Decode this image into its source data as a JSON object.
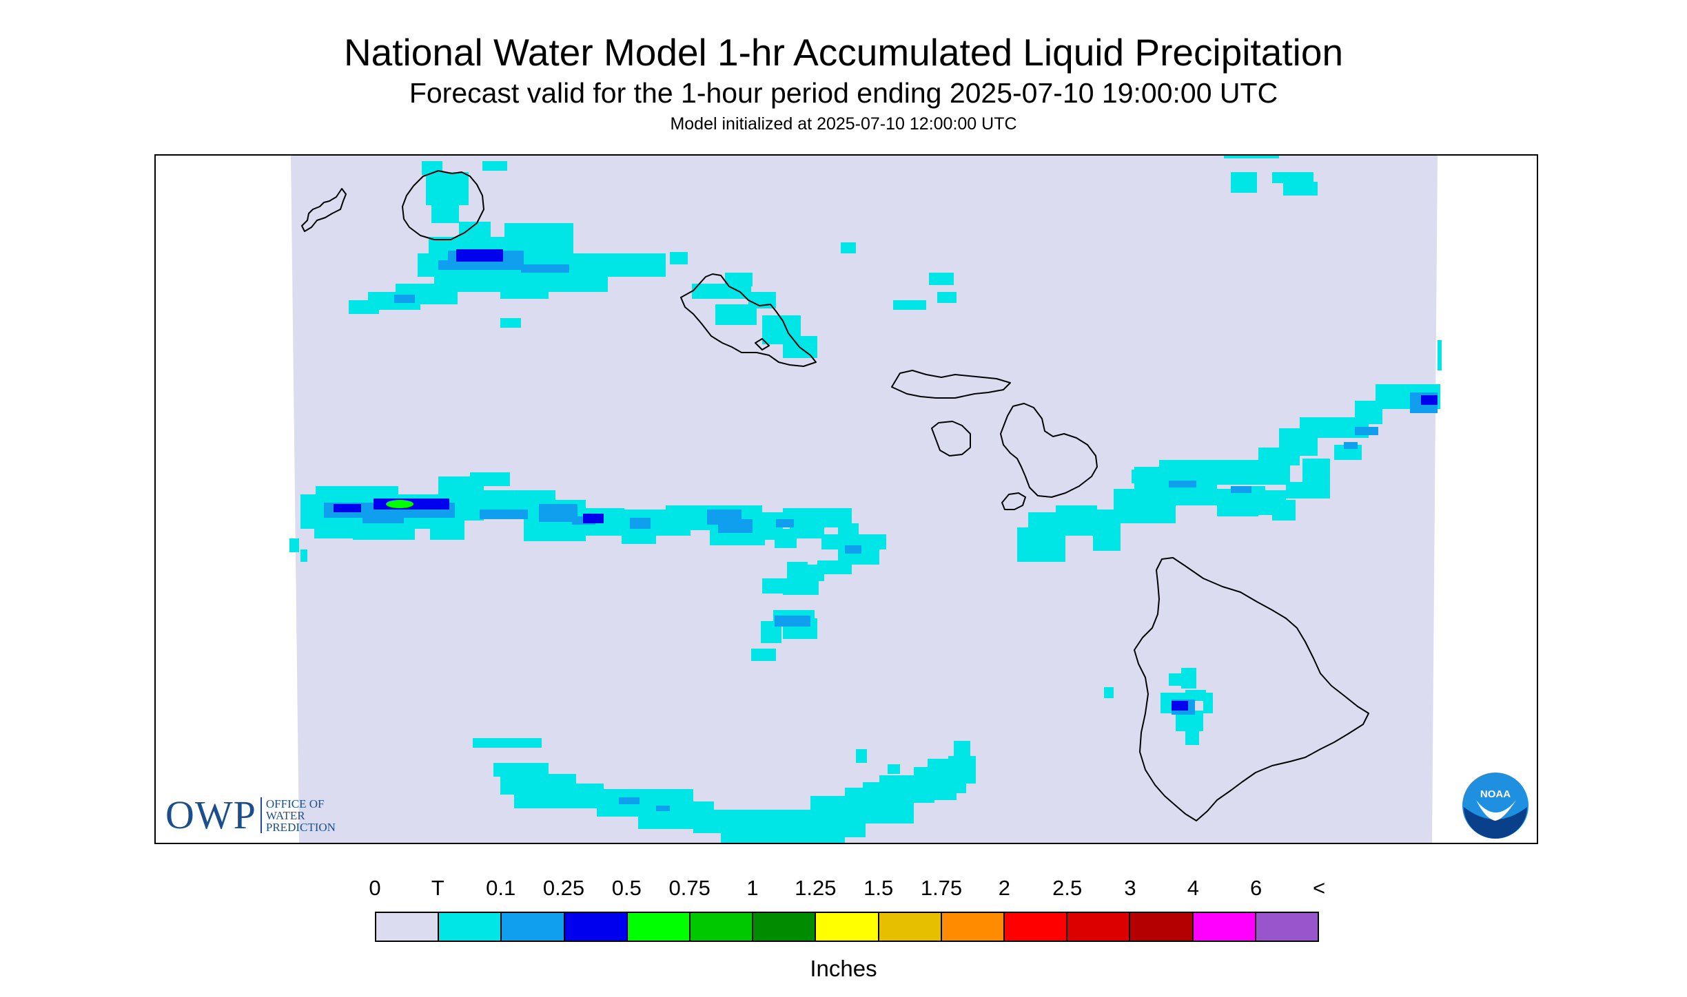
{
  "title": "National Water Model 1-hr Accumulated Liquid Precipitation",
  "subtitle": "Forecast valid for the 1-hour period ending 2025-07-10 19:00:00 UTC",
  "model_init": "Model initialized at 2025-07-10 12:00:00 UTC",
  "logos": {
    "owp_letters": "OWP",
    "owp_line1": "OFFICE OF",
    "owp_line2": "WATER",
    "owp_line3": "PREDICTION",
    "noaa": "NOAA"
  },
  "legend": {
    "units": "Inches",
    "labels": [
      "0",
      "T",
      "0.1",
      "0.25",
      "0.5",
      "0.75",
      "1",
      "1.25",
      "1.5",
      "1.75",
      "2",
      "2.5",
      "3",
      "4",
      "6",
      "<"
    ],
    "colors": [
      "#dcdcf0",
      "#00e5e5",
      "#0f9fee",
      "#0000ee",
      "#00ff00",
      "#00c800",
      "#008c00",
      "#ffff00",
      "#e6c000",
      "#ff8c00",
      "#ff0000",
      "#dc0000",
      "#b40000",
      "#ff00ff",
      "#9955cc"
    ]
  },
  "map": {
    "domain_color": "#dcdcf0",
    "coastline_color": "#000000"
  }
}
